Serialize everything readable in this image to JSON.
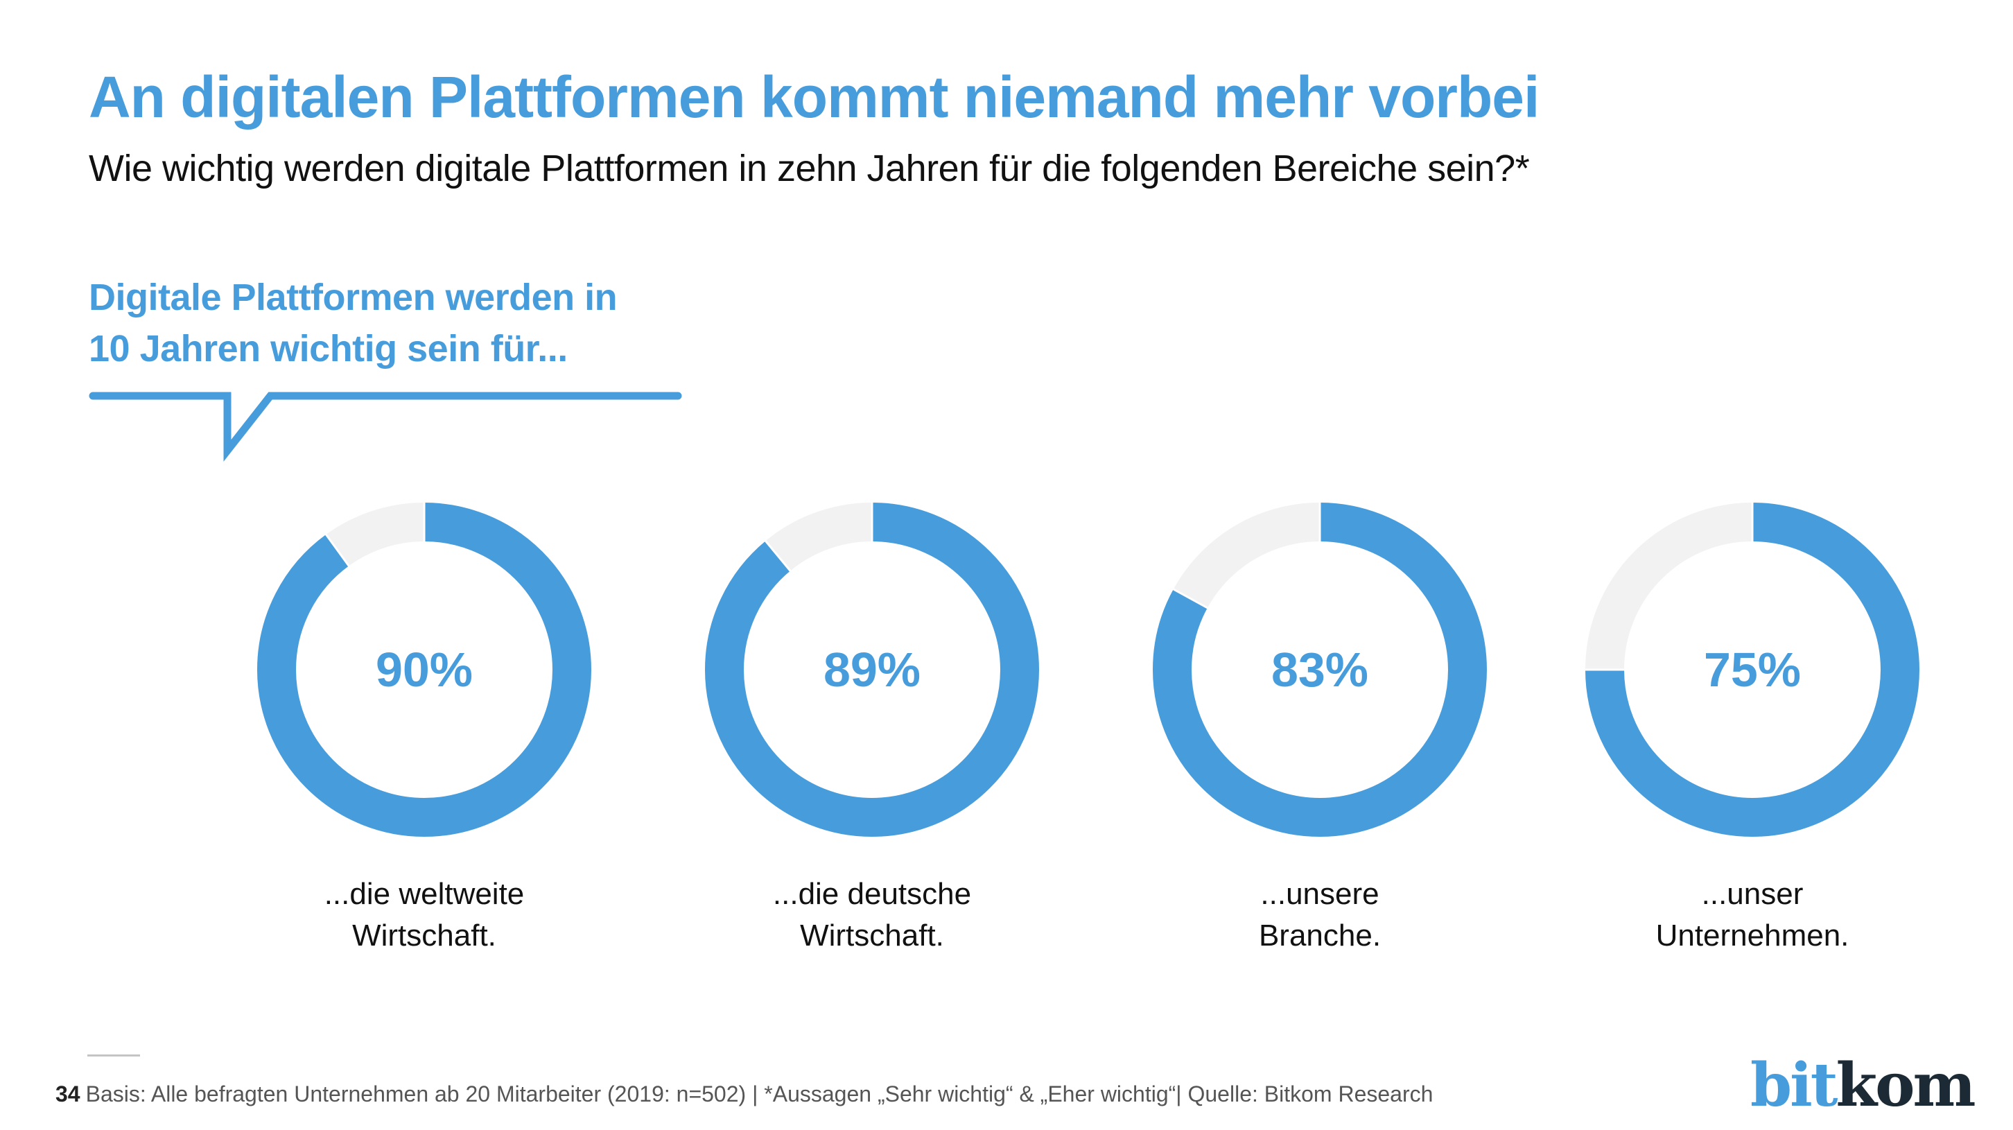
{
  "header": {
    "title": "An digitalen Plattformen kommt niemand mehr vorbei",
    "subtitle": "Wie wichtig werden digitale Plattformen in zehn Jahren für die folgenden Bereiche sein?*"
  },
  "callout": {
    "line1": "Digitale Plattformen werden in",
    "line2": "10 Jahren wichtig sein für..."
  },
  "colors": {
    "accent": "#479ddc",
    "remainder": "#f2f2f2",
    "text": "#111111"
  },
  "chart_data": {
    "type": "pie",
    "subtype": "donut",
    "title": "An digitalen Plattformen kommt niemand mehr vorbei",
    "subtitle": "Wie wichtig werden digitale Plattformen in zehn Jahren für die folgenden Bereiche sein?*",
    "unit": "%",
    "categories": [
      "...die weltweite Wirtschaft.",
      "...die deutsche Wirtschaft.",
      "...unsere Branche.",
      "...unser Unternehmen."
    ],
    "values": [
      90,
      89,
      83,
      75
    ],
    "value_labels": [
      "90%",
      "89%",
      "83%",
      "75%"
    ],
    "label_lines": [
      [
        "...die weltweite",
        "Wirtschaft."
      ],
      [
        "...die deutsche",
        "Wirtschaft."
      ],
      [
        "...unsere",
        "Branche."
      ],
      [
        "...unser",
        "Unternehmen."
      ]
    ],
    "max": 100
  },
  "footer": {
    "page_number": "34",
    "note": "Basis: Alle befragten Unternehmen ab 20 Mitarbeiter (2019: n=502) | *Aussagen „Sehr wichtig“ & „Eher wichtig“| Quelle: Bitkom Research"
  },
  "logo": {
    "part1": "bit",
    "part2": "kom"
  }
}
